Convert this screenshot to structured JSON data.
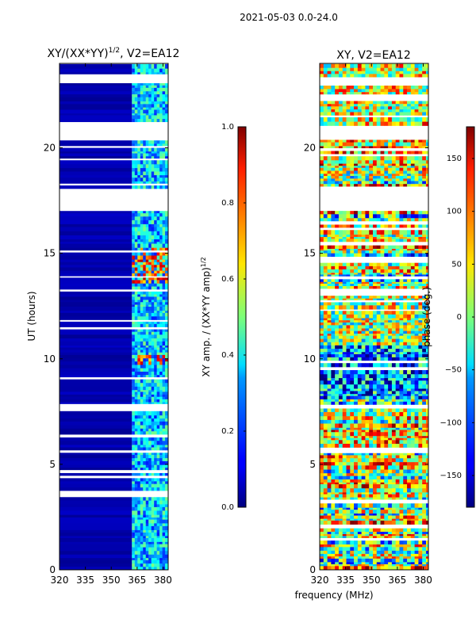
{
  "figure_title": "2021-05-03 0.0-24.0",
  "shared_xlabel": "frequency (MHz)",
  "colormap": "jet",
  "chart_data": [
    {
      "type": "heatmap",
      "title_text": "XY/(XX*YY)",
      "title_sup": "1/2",
      "title_rest": ", V2=EA12",
      "ylabel": "UT (hours)",
      "xlim": [
        320,
        383
      ],
      "ylim": [
        0,
        24
      ],
      "xticks": [
        320,
        335,
        350,
        365,
        380
      ],
      "yticks": [
        0,
        5,
        10,
        15,
        20
      ],
      "approx_band_edge_mhz": 362,
      "colorbar": {
        "label_text": "XY amp. / (XX*YY amp)",
        "label_sup": "1/2",
        "range": [
          0.0,
          1.0
        ],
        "ticks": [
          "0.0",
          "0.2",
          "0.4",
          "0.6",
          "0.8",
          "1.0"
        ]
      }
    },
    {
      "type": "heatmap",
      "title_text": "XY, V2=EA12",
      "ylabel": "",
      "xlim": [
        320,
        383
      ],
      "ylim": [
        0,
        24
      ],
      "xticks": [
        320,
        335,
        350,
        365,
        380
      ],
      "yticks": [
        0,
        5,
        10,
        15,
        20
      ],
      "colorbar": {
        "label_text": "phase (deg.)",
        "range": [
          -180,
          180
        ],
        "ticks": [
          "−150",
          "−100",
          "−50",
          "0",
          "50",
          "100",
          "150"
        ]
      }
    }
  ]
}
